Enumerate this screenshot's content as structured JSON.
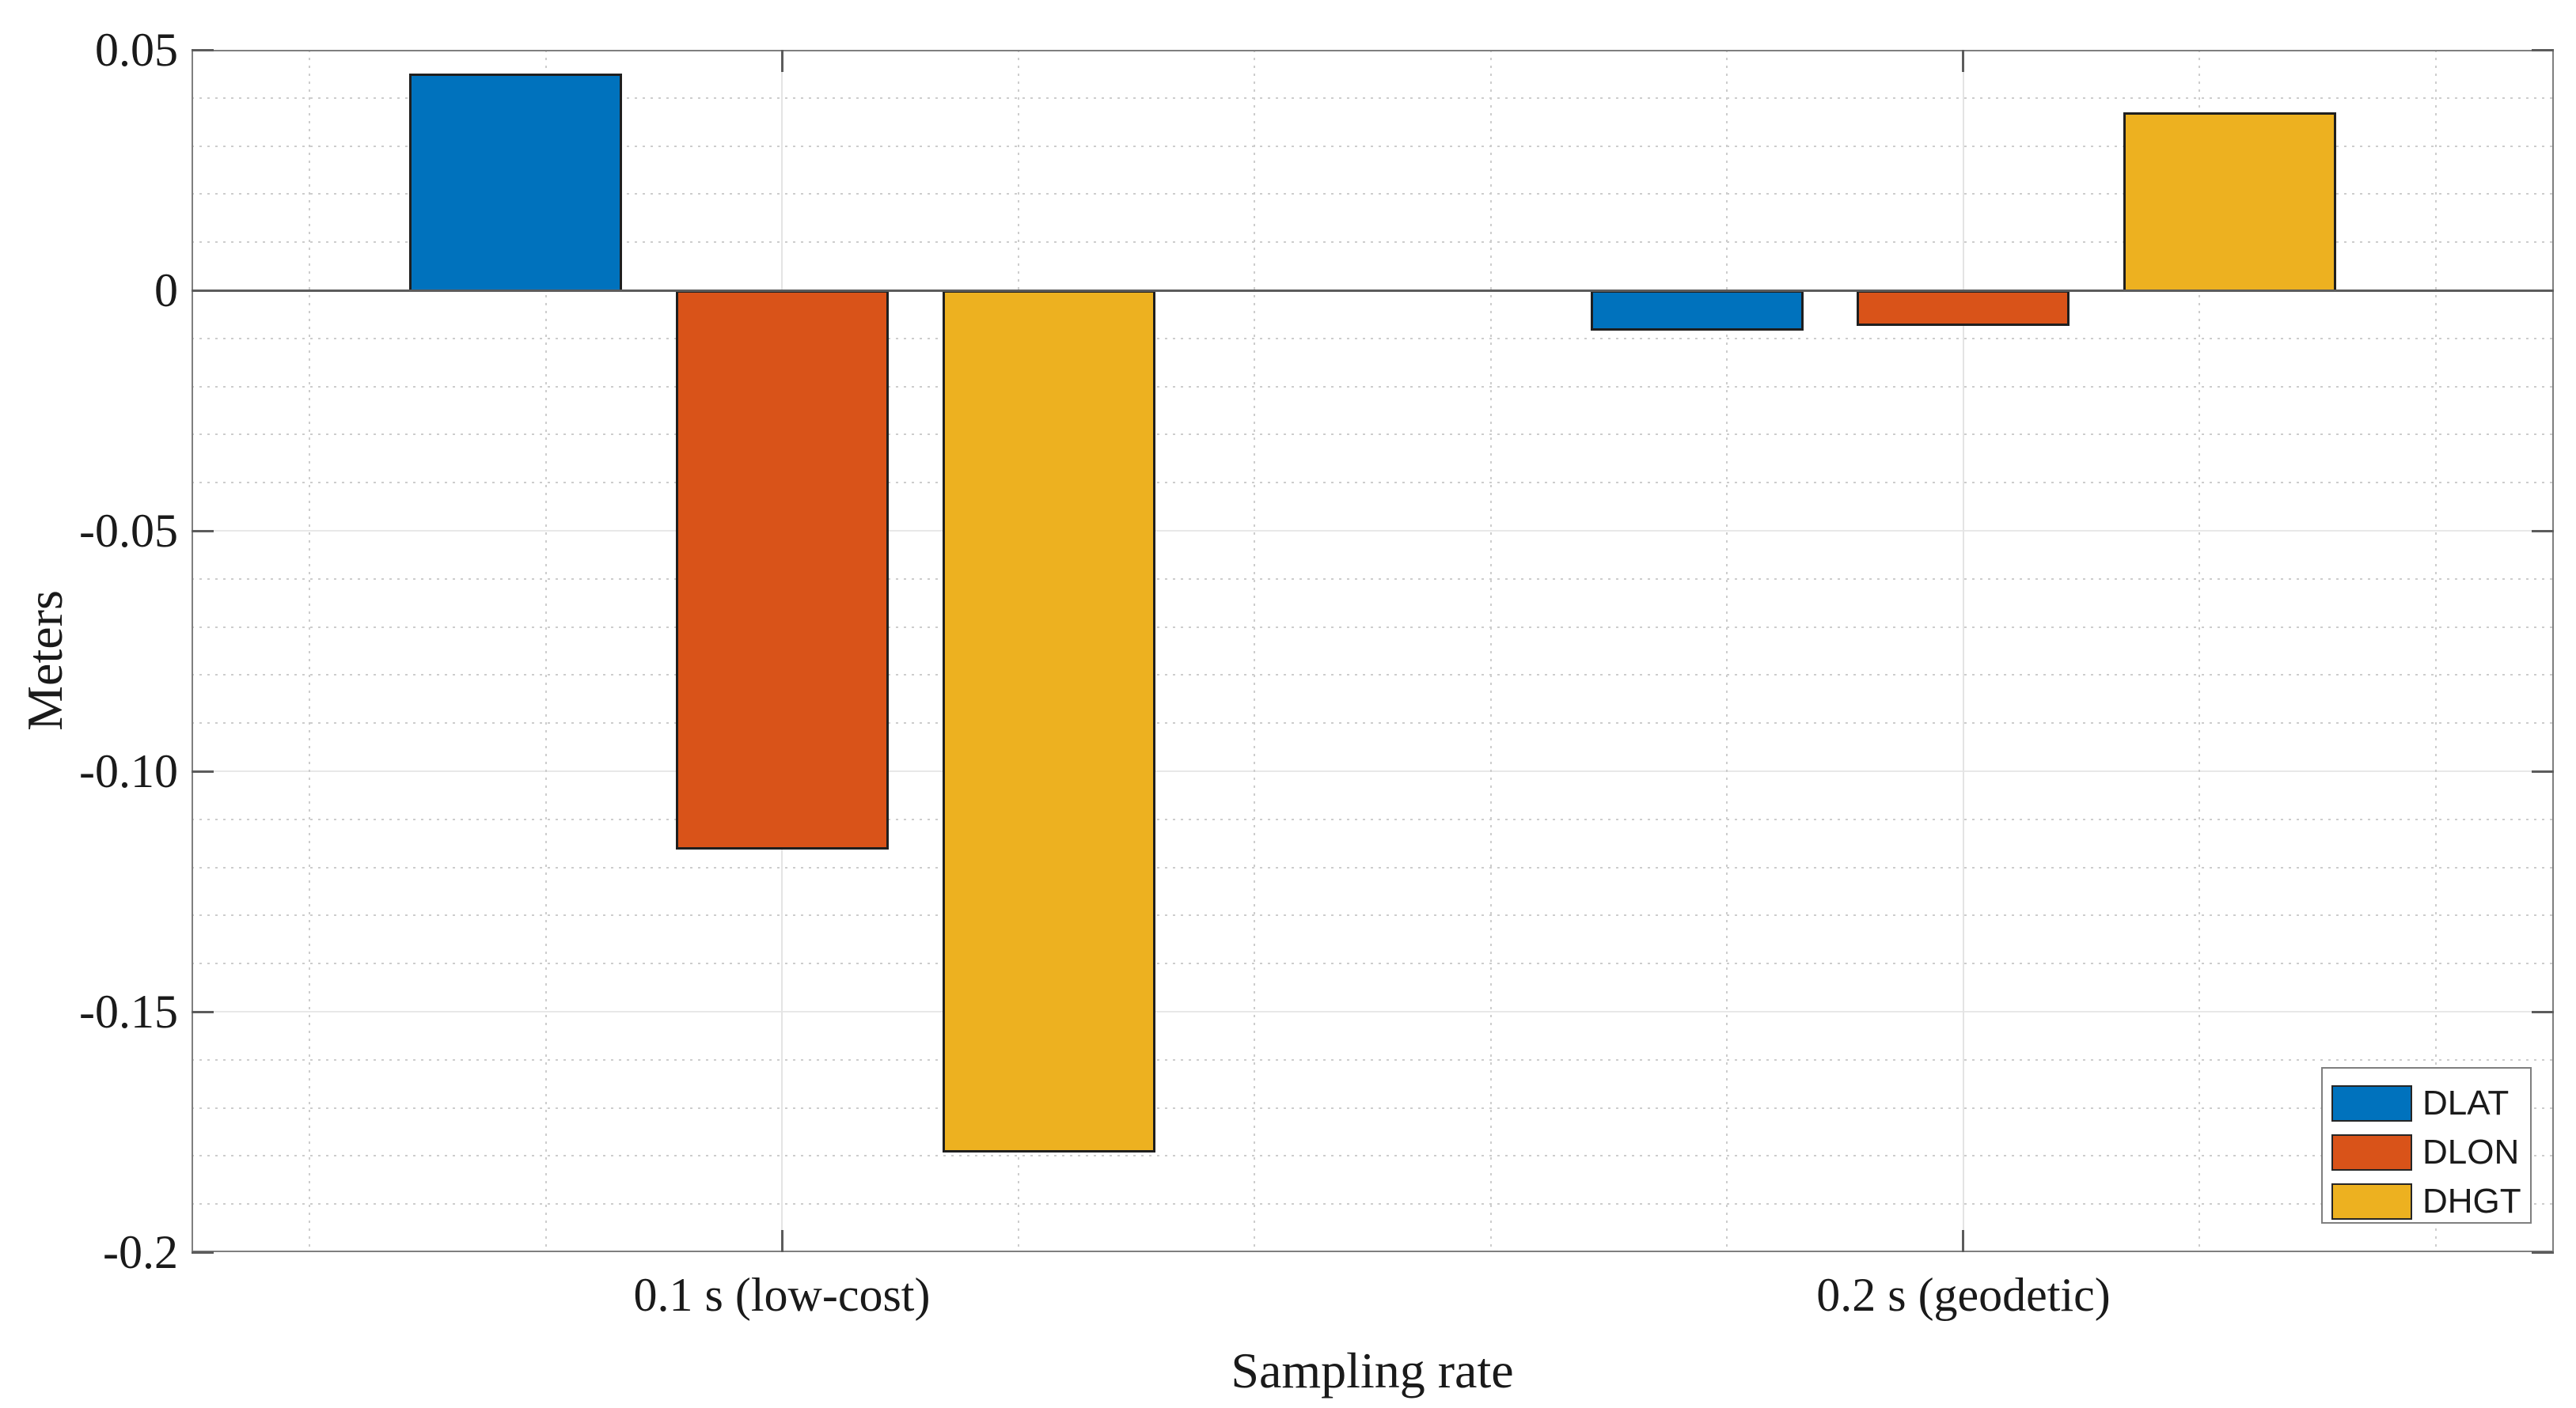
{
  "chart_data": {
    "type": "bar",
    "title": "",
    "categories": [
      "0.1 s (low-cost)",
      "0.2 s (geodetic)"
    ],
    "series": [
      {
        "name": "DLAT",
        "color": "#0072BD",
        "values": [
          0.045,
          -0.008
        ]
      },
      {
        "name": "DLON",
        "color": "#D95319",
        "values": [
          -0.116,
          -0.007
        ]
      },
      {
        "name": "DHGT",
        "color": "#EDB120",
        "values": [
          -0.179,
          0.037
        ]
      }
    ],
    "xlabel": "Sampling rate",
    "ylabel": "Meters",
    "ylim": [
      -0.2,
      0.05
    ],
    "y_major_ticks": [
      {
        "label": "0.05",
        "value": 0.05
      },
      {
        "label": "0",
        "value": 0
      },
      {
        "label": "-0.05",
        "value": -0.05
      },
      {
        "label": "-0.10",
        "value": -0.1
      },
      {
        "label": "-0.15",
        "value": -0.15
      },
      {
        "label": "-0.2",
        "value": -0.2
      }
    ],
    "y_minor_step": 0.01,
    "x_minor_positions": [
      0.6,
      0.8,
      1.2,
      1.4,
      1.6,
      1.8,
      2.2,
      2.4
    ],
    "grid": {
      "major_style": "solid",
      "minor_style": "dotted",
      "shown": true
    },
    "legend": {
      "position": "southeast",
      "entries": [
        "DLAT",
        "DLON",
        "DHGT"
      ]
    }
  }
}
